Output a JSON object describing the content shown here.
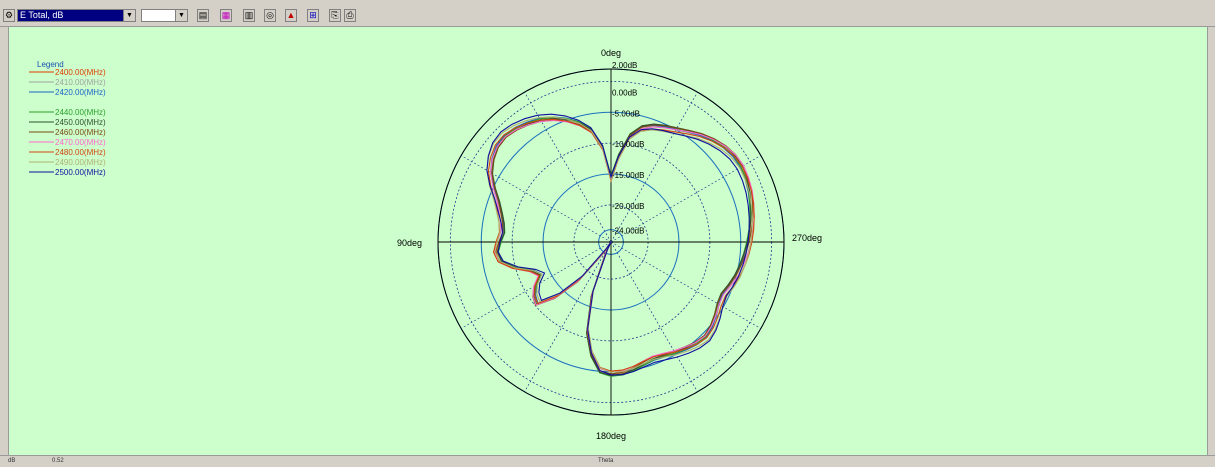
{
  "toolbar": {
    "quantity_selected": "E Total, dB",
    "second_combo_value": "",
    "icons": [
      "settings-icon",
      "trace-icon",
      "color-icon",
      "grid-icon",
      "polar-icon",
      "marker-icon",
      "zoom-icon",
      "copy-icon",
      "print-icon"
    ]
  },
  "status": {
    "unit": "dB",
    "value": "0.52",
    "axis_name": "Theta"
  },
  "chart_data": {
    "type": "line",
    "subtype": "polar",
    "angle_labels": [
      "0deg",
      "90deg",
      "180deg",
      "270deg"
    ],
    "radial_tick_labels": [
      "2.00dB",
      "0.00dB",
      "-5.00dB",
      "-10.00dB",
      "-15.00dB",
      "-20.00dB",
      "-24.00dB"
    ],
    "radial_range": [
      -26,
      2
    ],
    "angle_direction": "counter-clockwise from top",
    "grid": true,
    "legend_title": "Legend",
    "legend_position": "top-left",
    "theta_deg": [
      0,
      5,
      10,
      15,
      20,
      25,
      30,
      35,
      40,
      45,
      50,
      55,
      60,
      65,
      70,
      75,
      80,
      85,
      90,
      95,
      100,
      105,
      110,
      115,
      120,
      125,
      130,
      135,
      140,
      145,
      150,
      155,
      160,
      165,
      170,
      175,
      180,
      185,
      190,
      195,
      200,
      205,
      210,
      215,
      220,
      225,
      230,
      235,
      240,
      245,
      250,
      255,
      260,
      265,
      270,
      275,
      280,
      285,
      290,
      295,
      300,
      305,
      310,
      315,
      320,
      325,
      330,
      335,
      340,
      345,
      350,
      355
    ],
    "series": [
      {
        "name": "2400.00(MHz)",
        "color": "#e03c00"
      },
      {
        "name": "2410.00(MHz)",
        "color": "#a0a0a0"
      },
      {
        "name": "2420.00(MHz)",
        "color": "#1c64c8"
      },
      {
        "name": "2440.00(MHz)",
        "color": "#2ca02c"
      },
      {
        "name": "2450.00(MHz)",
        "color": "#2f4f2f"
      },
      {
        "name": "2460.00(MHz)",
        "color": "#7a4a12"
      },
      {
        "name": "2470.00(MHz)",
        "color": "#ff66cc"
      },
      {
        "name": "2480.00(MHz)",
        "color": "#d2450f"
      },
      {
        "name": "2490.00(MHz)",
        "color": "#b0b070"
      },
      {
        "name": "2500.00(MHz)",
        "color": "#1010a0"
      }
    ],
    "base_pattern_db": [
      -15.5,
      -10.5,
      -7.5,
      -6.0,
      -4.8,
      -3.8,
      -3.0,
      -2.4,
      -1.9,
      -1.6,
      -1.8,
      -2.5,
      -3.5,
      -5.0,
      -6.5,
      -7.5,
      -8.2,
      -8.5,
      -8.0,
      -7.5,
      -8.0,
      -10.0,
      -12.5,
      -13.5,
      -12.0,
      -11.0,
      -10.5,
      -13.5,
      -18.0,
      -24.0,
      -26.0,
      -24.0,
      -17.0,
      -11.0,
      -7.5,
      -5.0,
      -4.5,
      -4.6,
      -5.0,
      -5.5,
      -5.8,
      -5.6,
      -5.2,
      -4.8,
      -4.4,
      -4.2,
      -4.6,
      -5.2,
      -5.8,
      -6.0,
      -5.5,
      -5.0,
      -4.6,
      -4.2,
      -3.8,
      -3.4,
      -3.0,
      -2.6,
      -2.2,
      -1.9,
      -1.7,
      -1.8,
      -2.2,
      -2.8,
      -3.5,
      -4.3,
      -5.0,
      -5.5,
      -6.0,
      -6.8,
      -8.5,
      -12.0
    ]
  }
}
